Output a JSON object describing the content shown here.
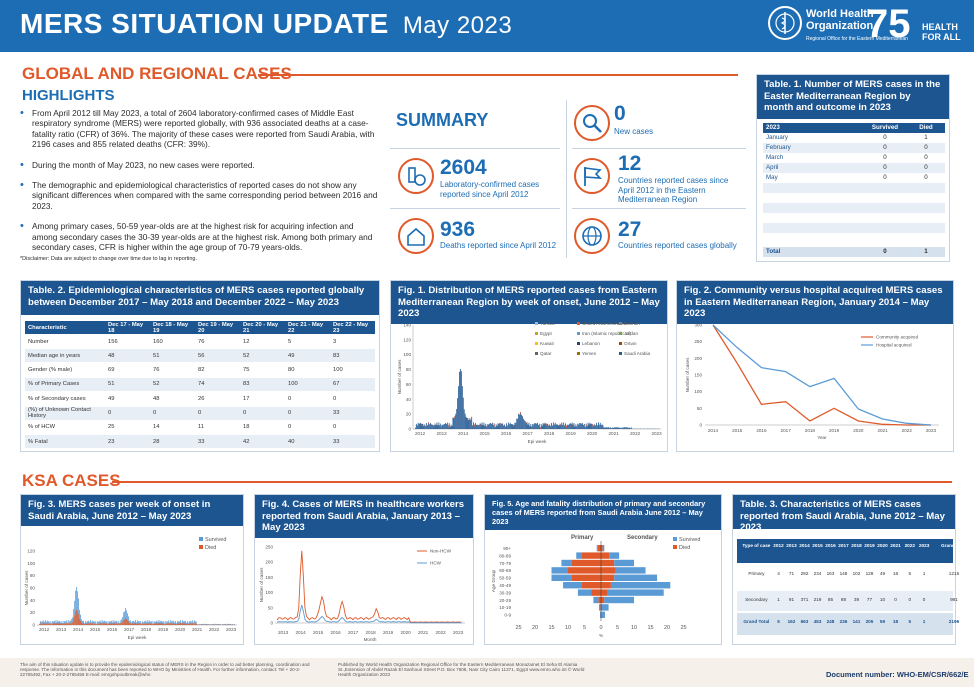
{
  "header": {
    "title": "MERS SITUATION UPDATE",
    "month": "May 2023",
    "who_name_line1": "World Health",
    "who_name_line2": "Organization",
    "who_sub": "Regional Office for the Eastern Mediterranean",
    "who75": "75",
    "health_for_all": "HEALTH FOR ALL"
  },
  "global": {
    "section_title": "GLOBAL AND REGIONAL CASES",
    "highlights_title": "HIGHLIGHTS",
    "bullets": [
      "From April 2012 till May 2023, a total of 2604 laboratory-confirmed cases of Middle East respiratory syndrome (MERS) were reported globally, with 936 associated deaths at a case-fatality ratio (CFR) of 36%. The majority of these cases were reported from Saudi Arabia, with 2196 cases and 855 related deaths (CFR: 39%).",
      "During the month of May 2023, no new cases were reported.",
      "The demographic and epidemiological characteristics of reported cases do not show any significant differences when compared with the same corresponding period between 2016 and 2023.",
      "Among primary cases, 50-59 year-olds are at the highest risk for acquiring infection and among secondary cases the 30-39 year-olds are at the highest risk. Among both primary and secondary cases, CFR is higher within the age group of 70-79 years-olds."
    ],
    "disclaimer": "*Disclaimer: Data are subject to change over time due to lag in reporting."
  },
  "summary": {
    "title": "SUMMARY",
    "items": [
      {
        "num": "0",
        "text": "New cases",
        "icon": "search-virus-icon"
      },
      {
        "num": "2604",
        "text": "Laboratory-confirmed cases reported since April 2012",
        "icon": "lab-icon"
      },
      {
        "num": "12",
        "text": "Countries reported cases since April 2012 in the Eastern Mediterranean Region",
        "icon": "flag-icon"
      },
      {
        "num": "936",
        "text": "Deaths reported since April 2012",
        "icon": "house-icon"
      },
      {
        "num": "27",
        "text": "Countries reported cases globally",
        "icon": "globe-icon"
      }
    ]
  },
  "table1": {
    "title": "Table. 1. Number of MERS cases in the Easter Mediterranean Region by month and outcome in 2023",
    "headers": [
      "2023",
      "Survived",
      "Died"
    ],
    "rows": [
      [
        "January",
        "0",
        "1"
      ],
      [
        "February",
        "0",
        "0"
      ],
      [
        "March",
        "0",
        "0"
      ],
      [
        "April",
        "0",
        "0"
      ],
      [
        "May",
        "0",
        "0"
      ]
    ],
    "total": [
      "Total",
      "0",
      "1"
    ]
  },
  "table2": {
    "title": "Table. 2. Epidemiological characteristics of MERS cases reported globally between December 2017 – May 2018 and December 2022 – May 2023",
    "headers": [
      "Characteristic",
      "Dec 17 - May 18",
      "Dec 18 - May 19",
      "Dec 19 - May 20",
      "Dec 20 - May 21",
      "Dec 21 - May 22",
      "Dec 22 - May 23"
    ],
    "rows": [
      [
        "Number",
        "156",
        "160",
        "76",
        "12",
        "5",
        "3"
      ],
      [
        "Median age in years",
        "48",
        "51",
        "56",
        "52",
        "49",
        "83"
      ],
      [
        "Gender (% male)",
        "69",
        "76",
        "82",
        "75",
        "80",
        "100"
      ],
      [
        "% of Primary Cases",
        "51",
        "52",
        "74",
        "83",
        "100",
        "67"
      ],
      [
        "% of Secondary cases",
        "49",
        "48",
        "26",
        "17",
        "0",
        "0"
      ],
      [
        "(%) of Unknown Contact History",
        "0",
        "0",
        "0",
        "0",
        "0",
        "33"
      ],
      [
        "% of HCW",
        "25",
        "14",
        "11",
        "18",
        "0",
        "0"
      ],
      [
        "% Fatal",
        "23",
        "28",
        "33",
        "42",
        "40",
        "33"
      ]
    ]
  },
  "fig1": {
    "title": "Fig. 1. Distribution of MERS reported cases from Eastern Mediterranean Region by week of onset, June 2012 – May 2023",
    "ylabel": "Number of cases",
    "xlabel": "Epi week",
    "legend": [
      "Tunisia",
      "United Arab Emirates",
      "Bahrain",
      "Egypt",
      "Iran (Islamic republic of)",
      "Jordan",
      "Kuwait",
      "Lebanon",
      "Oman",
      "Qatar",
      "Yemen",
      "Saudi Arabia"
    ],
    "legend_colors": [
      "#9fb7d6",
      "#e0592a",
      "#7f7f7f",
      "#c9a227",
      "#5b9bd5",
      "#70ad47",
      "#ffc000",
      "#264478",
      "#9e480e",
      "#636363",
      "#997300",
      "#255e91"
    ]
  },
  "fig2": {
    "title": "Fig. 2. Community versus hospital acquired MERS cases in Eastern Mediterranean Region, January 2014 – May 2023",
    "ylabel": "Number of cases",
    "xlabel": "Year"
  },
  "ksa": {
    "section_title": "KSA CASES"
  },
  "fig3": {
    "title": "Fig. 3. MERS cases per week of onset in Saudi Arabia, June 2012 – May 2023",
    "ylabel": "Number of cases",
    "xlabel": "Epi week",
    "legend_survived": "Survived",
    "legend_died": "Died"
  },
  "fig4": {
    "title": "Fig. 4. Cases of MERS in healthcare workers reported from Saudi Arabia, January 2013 – May 2023",
    "ylabel": "Number of cases",
    "xlabel": "Month",
    "legend_nonhcw": "Non-HCW",
    "legend_hcw": "HCW"
  },
  "fig5": {
    "title": "Fig. 5. Age and fatality distribution of primary and secondary cases of MERS reported from Saudi Arabia June 2012 – May 2023",
    "primary": "Primary",
    "secondary": "Secondary",
    "ylabel": "Age Group",
    "xlabel": "%",
    "legend_survived": "Survived",
    "legend_died": "Died"
  },
  "table3": {
    "title": "Table. 3. Characteristics of MERS cases reported from Saudi Arabia, June 2012 – May 2023",
    "headers": [
      "Type of case",
      "2012",
      "2013",
      "2014",
      "2015",
      "2016",
      "2017",
      "2018",
      "2019",
      "2020",
      "2021",
      "2022",
      "2023",
      "Grand Total"
    ],
    "rows": [
      [
        "Primary",
        "4",
        "71",
        "292",
        "234",
        "163",
        "148",
        "102",
        "128",
        "49",
        "18",
        "5",
        "1",
        "1215"
      ],
      [
        "Secondary",
        "1",
        "91",
        "371",
        "219",
        "85",
        "88",
        "39",
        "77",
        "10",
        "0",
        "0",
        "0",
        "981"
      ],
      [
        "Grand Total",
        "5",
        "162",
        "663",
        "453",
        "248",
        "236",
        "141",
        "205",
        "59",
        "18",
        "5",
        "1",
        "2196"
      ]
    ]
  },
  "footer": {
    "left": "The aim of this situation update is to provide the epidemiological status of MERS in the Region in order to aid better planning, coordination and response. The information in this document has been reported to WHO by Ministries of Health. For further information, contact: Tel + 20-2-22765492, Fax + 20-2-2765456 E-mail: emrgohpoutbreak@who",
    "middle": "Published by World Health Organization Regional Office for the Eastern Mediterranean Monazamet El Seha El Alamia St.,Extension of Abdel Razak El Sanhouri Street P.O. Box 7608, Nasr City Cairo 11371, Egypt www.emro.who.int © World Health Organization 2023",
    "doc_number": "Document number: WHO-EM/CSR/662/E"
  },
  "chart_data": [
    {
      "type": "line",
      "title": "Fig. 2. Community versus hospital acquired MERS cases in Eastern Mediterranean Region, January 2014 – May 2023",
      "x": [
        2014,
        2015,
        2016,
        2017,
        2018,
        2019,
        2020,
        2021,
        2022,
        2023
      ],
      "series": [
        {
          "name": "Community acquired",
          "values": [
            310,
            185,
            62,
            70,
            12,
            50,
            12,
            2,
            0,
            0
          ]
        },
        {
          "name": "Hospital acquired",
          "values": [
            310,
            232,
            172,
            160,
            115,
            140,
            48,
            18,
            5,
            0
          ]
        }
      ],
      "xlabel": "Year",
      "ylabel": "Number of cases",
      "ylim": [
        0,
        300
      ]
    },
    {
      "type": "bar",
      "title": "Fig. 5. Age and fatality distribution of primary and secondary cases of MERS reported from Saudi Arabia June 2012 – May 2023",
      "categories": [
        "0-9",
        "10-19",
        "20-29",
        "30-39",
        "40-49",
        "50-59",
        "60-69",
        "70-79",
        "80-89",
        "90+"
      ],
      "series": [
        {
          "name": "Primary Survived",
          "values": [
            0.2,
            0.4,
            1.5,
            4,
            5.5,
            6,
            5,
            3,
            1.5,
            0.3
          ]
        },
        {
          "name": "Primary Died",
          "values": [
            0.1,
            0.2,
            0.8,
            3,
            6,
            9,
            10,
            9,
            6,
            1
          ]
        },
        {
          "name": "Secondary Survived",
          "values": [
            1,
            2,
            9,
            17,
            18,
            13,
            9,
            6,
            3,
            0.5
          ]
        },
        {
          "name": "Secondary Died",
          "values": [
            0.2,
            0.3,
            1,
            2,
            3,
            4,
            4.5,
            4,
            2.5,
            0.5
          ]
        }
      ],
      "xlabel": "%",
      "ylabel": "Age Group"
    }
  ]
}
